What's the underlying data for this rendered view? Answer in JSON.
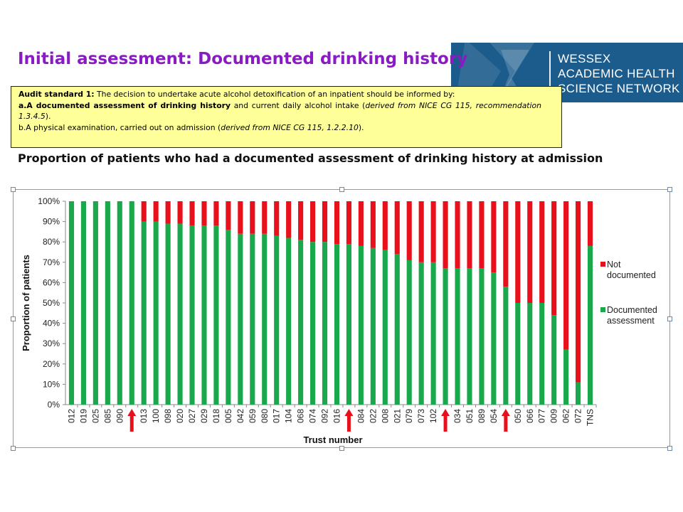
{
  "header": {
    "title": "Initial assessment: Documented drinking history",
    "logo_lines": [
      "WESSEX",
      "ACADEMIC HEALTH",
      "SCIENCE NETWORK"
    ]
  },
  "audit_standard": {
    "label": "Audit standard 1:",
    "intro": "The decision to undertake acute alcohol detoxification of an inpatient should be informed by:",
    "a_label": "a.A documented assessment of drinking history",
    "a_rest": " and current daily alcohol intake (",
    "a_ref": "derived from NICE CG 115, recommendation 1.3.4.5",
    "a_end": ").",
    "b_text": "b.A physical examination, carried out on admission (",
    "b_ref": "derived from NICE CG 115, 1.2.2.10",
    "b_end": ")."
  },
  "subtitle": "Proportion of patients who had a documented assessment of drinking history at admission",
  "colors": {
    "documented": "#1aa84c",
    "not_documented": "#e8101a",
    "title": "#8a1bc4",
    "logo_bg": "#1b5c8c",
    "arrow": "#e8101a"
  },
  "chart_data": {
    "type": "bar",
    "stacked": true,
    "xlabel": "Trust number",
    "ylabel": "Proportion of patients",
    "ylim": [
      0,
      100
    ],
    "yticks": [
      "0%",
      "10%",
      "20%",
      "30%",
      "40%",
      "50%",
      "60%",
      "70%",
      "80%",
      "90%",
      "100%"
    ],
    "categories": [
      "012",
      "019",
      "025",
      "085",
      "090",
      "",
      "013",
      "100",
      "098",
      "020",
      "027",
      "029",
      "018",
      "005",
      "042",
      "059",
      "080",
      "017",
      "104",
      "068",
      "074",
      "092",
      "016",
      "",
      "084",
      "022",
      "008",
      "021",
      "079",
      "073",
      "102",
      "",
      "034",
      "051",
      "089",
      "054",
      "",
      "050",
      "066",
      "077",
      "009",
      "062",
      "072",
      "TNS"
    ],
    "series": [
      {
        "name": "Documented assessment",
        "values": [
          100,
          100,
          100,
          100,
          100,
          100,
          90,
          90,
          89,
          89,
          88,
          88,
          88,
          86,
          84,
          84,
          84,
          83,
          82,
          81,
          80,
          80,
          79,
          79,
          78,
          77,
          76,
          74,
          71,
          70,
          70,
          67,
          67,
          67,
          67,
          65,
          58,
          50,
          50,
          50,
          44,
          27,
          11,
          78
        ]
      },
      {
        "name": "Not documented",
        "values": [
          0,
          0,
          0,
          0,
          0,
          0,
          10,
          10,
          11,
          11,
          12,
          12,
          12,
          14,
          16,
          16,
          16,
          17,
          18,
          19,
          20,
          20,
          21,
          21,
          22,
          23,
          24,
          26,
          29,
          30,
          30,
          33,
          33,
          33,
          33,
          35,
          42,
          50,
          50,
          50,
          56,
          73,
          89,
          22
        ]
      }
    ],
    "legend_position": "right",
    "highlight_arrows_at": [
      5,
      23,
      31,
      36
    ]
  }
}
